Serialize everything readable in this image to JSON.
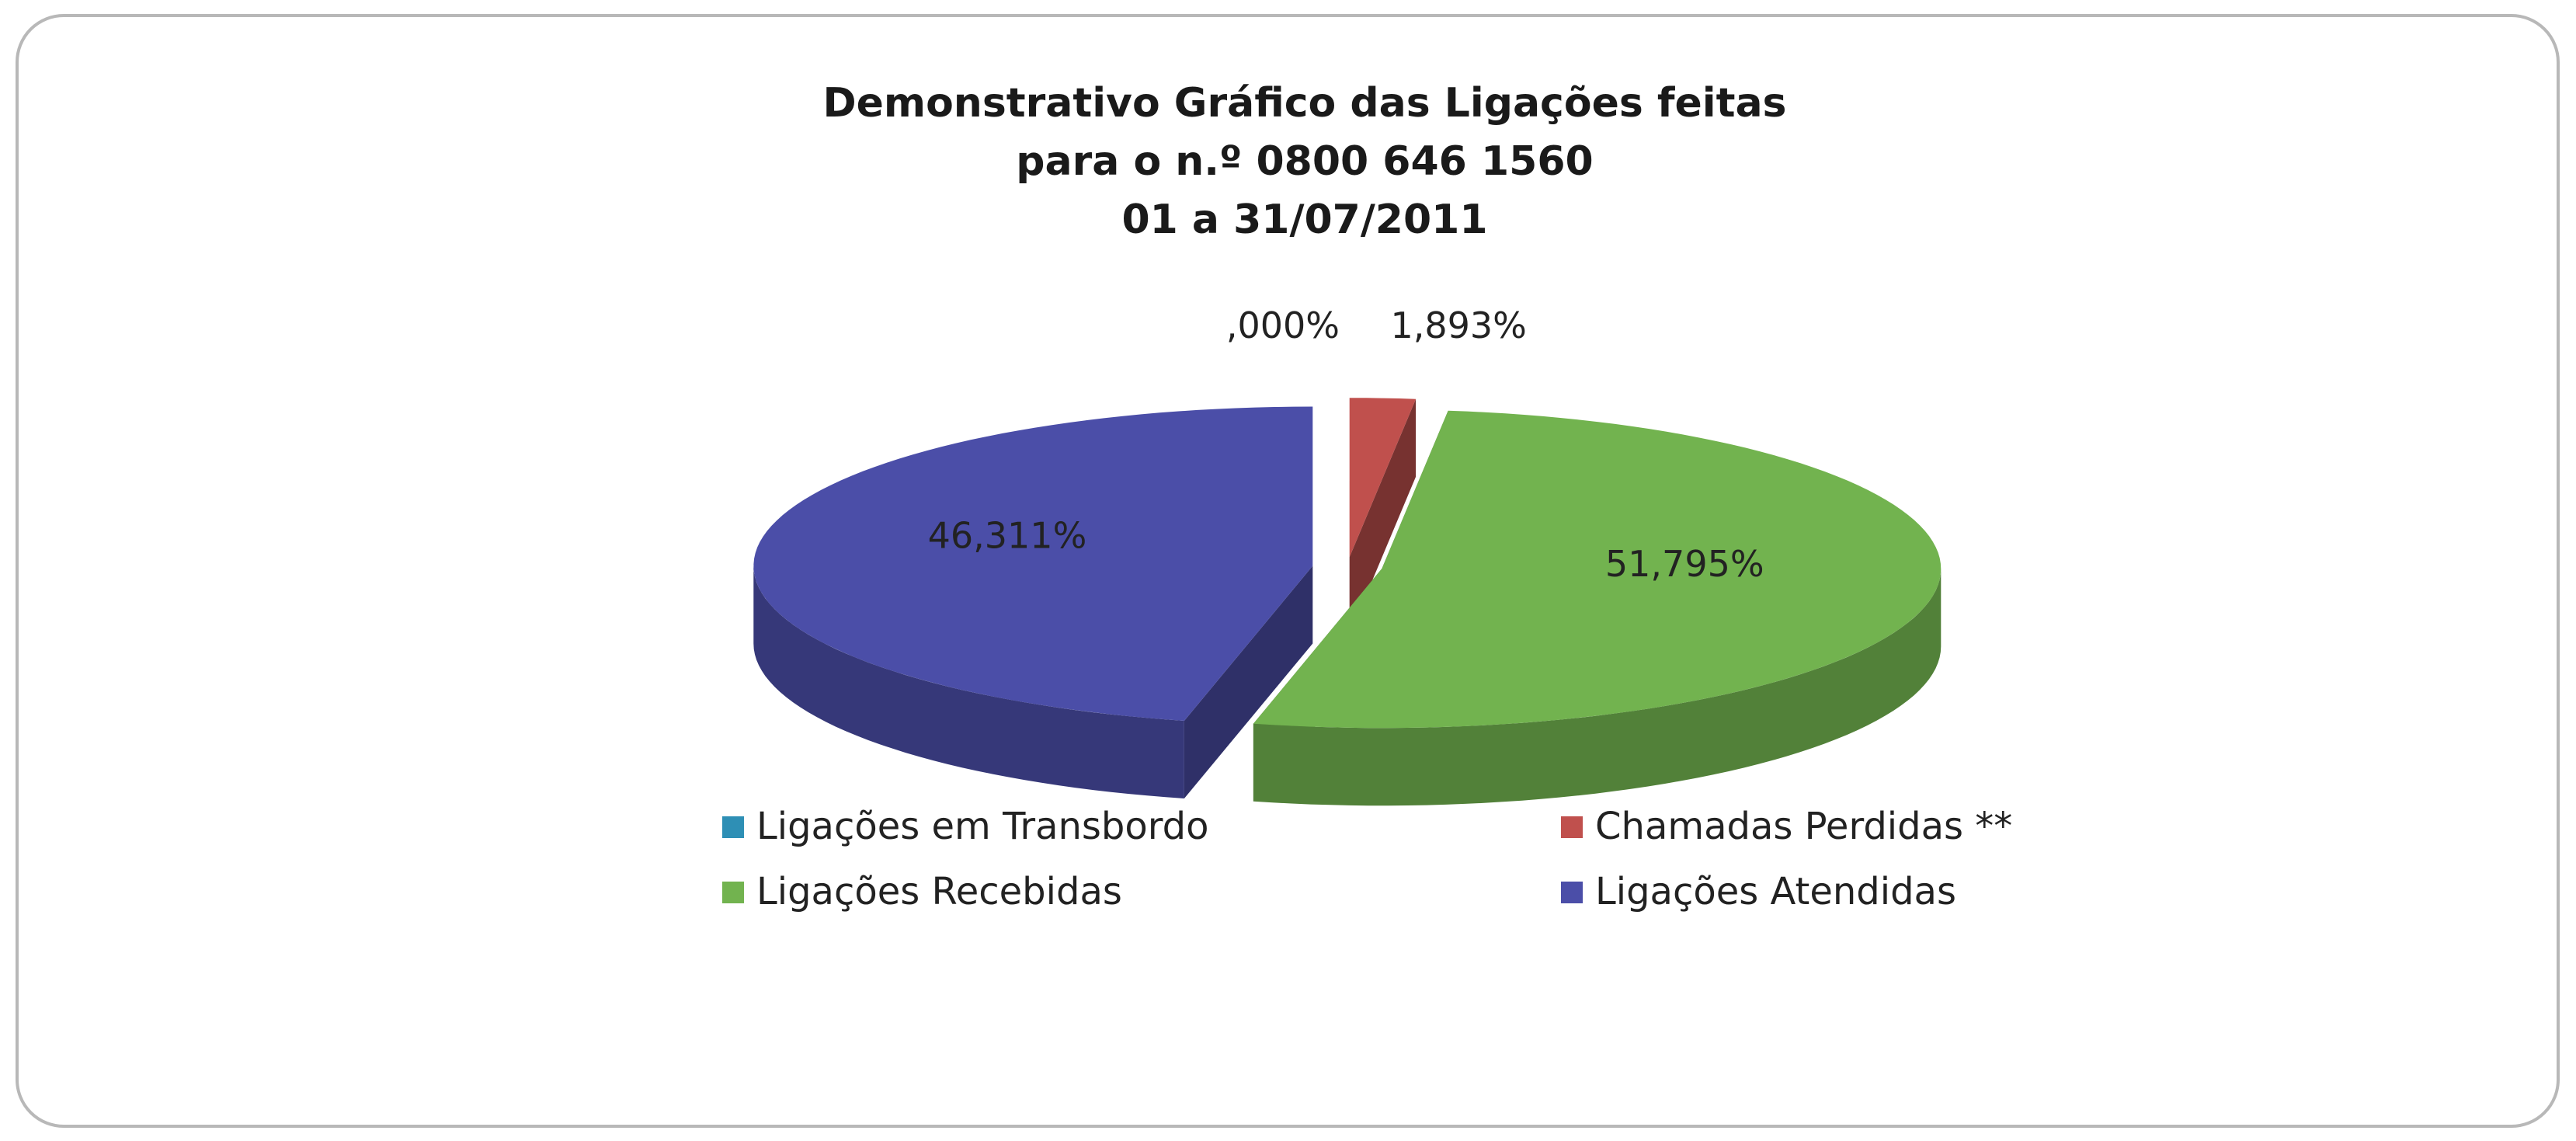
{
  "chart_data": {
    "type": "pie",
    "title": [
      "Demonstrativo Gráfico das Ligações feitas",
      "para o n.º 0800 646 1560",
      "01 a  31/07/2011"
    ],
    "categories": [
      "Ligações em Transbordo",
      "Chamadas Perdidas **",
      "Ligações Recebidas",
      "Ligações Atendidas"
    ],
    "values": [
      0.0,
      1.893,
      51.795,
      46.311
    ],
    "value_labels": [
      ",000%",
      "1,893%",
      "51,795%",
      "46,311%"
    ],
    "colors": [
      "#2e8fb5",
      "#c0504d",
      "#72b34f",
      "#4b4ea8"
    ],
    "legend": "bottom"
  }
}
